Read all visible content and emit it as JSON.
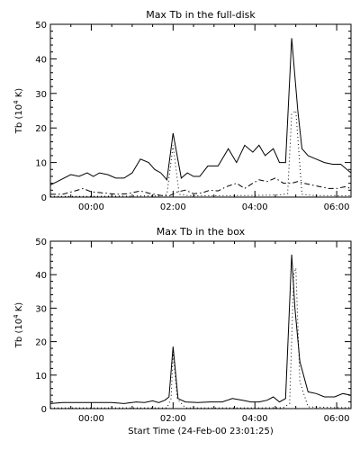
{
  "chart_data": [
    {
      "type": "line",
      "title": "Max Tb in the full-disk",
      "ylabel": "Tb (10",
      "ylabel_sup": "4",
      "ylabel_tail": " K)",
      "xlabel": "",
      "ylim": [
        0,
        50
      ],
      "xlim": [
        -1.0,
        6.35
      ],
      "yticks": [
        0,
        10,
        20,
        30,
        40,
        50
      ],
      "xticks": [
        {
          "v": 0,
          "label": "00:00"
        },
        {
          "v": 2,
          "label": "02:00"
        },
        {
          "v": 4,
          "label": "04:00"
        },
        {
          "v": 6,
          "label": "06:00"
        }
      ],
      "series": [
        {
          "style": "solid",
          "x": [
            -1.0,
            -0.75,
            -0.5,
            -0.3,
            -0.1,
            0.05,
            0.2,
            0.4,
            0.6,
            0.8,
            1.0,
            1.2,
            1.4,
            1.55,
            1.7,
            1.85,
            2.0,
            2.2,
            2.35,
            2.5,
            2.65,
            2.85,
            3.1,
            3.35,
            3.55,
            3.75,
            3.95,
            4.1,
            4.25,
            4.45,
            4.6,
            4.75,
            4.9,
            5.05,
            5.15,
            5.3,
            5.5,
            5.7,
            5.9,
            6.1,
            6.35
          ],
          "y": [
            3.5,
            5,
            6.5,
            6,
            7,
            6,
            7,
            6.5,
            5.5,
            5.5,
            7,
            11,
            10,
            8,
            7,
            5,
            18.5,
            5.5,
            7,
            6,
            6,
            9,
            9,
            14,
            10,
            15,
            13,
            15,
            12,
            14,
            10,
            10,
            46,
            25,
            14,
            12,
            11,
            10,
            9.5,
            9.5,
            7
          ]
        },
        {
          "style": "dashdot",
          "x": [
            -1.0,
            -0.7,
            -0.4,
            -0.2,
            0.0,
            0.3,
            0.6,
            0.9,
            1.2,
            1.45,
            1.7,
            1.9,
            2.1,
            2.3,
            2.5,
            2.7,
            2.9,
            3.1,
            3.3,
            3.55,
            3.75,
            3.95,
            4.1,
            4.3,
            4.5,
            4.7,
            4.9,
            5.05,
            5.2,
            5.4,
            5.6,
            5.8,
            6.0,
            6.2,
            6.35
          ],
          "y": [
            0.8,
            0.8,
            1.8,
            2.5,
            1.5,
            1.2,
            0.8,
            1.0,
            1.8,
            1.0,
            0.5,
            0.3,
            1.5,
            2,
            1.0,
            1.2,
            2.0,
            1.8,
            3.0,
            4.0,
            2.5,
            4.0,
            5.0,
            4.5,
            5.5,
            4.0,
            4.0,
            4.5,
            4.0,
            3.5,
            3.0,
            2.5,
            2.5,
            3.0,
            2.5
          ]
        },
        {
          "style": "dotted",
          "x": [
            -1.0,
            0.0,
            1.0,
            1.7,
            1.85,
            2.0,
            2.15,
            2.4,
            3.0,
            4.0,
            4.6,
            4.8,
            4.9,
            5.0,
            5.15,
            5.4,
            6.0,
            6.35
          ],
          "y": [
            0.2,
            0.2,
            0.3,
            0.3,
            0.8,
            15,
            0.8,
            0.4,
            0.4,
            0.5,
            0.6,
            1.0,
            24,
            25,
            0.8,
            0.5,
            0.4,
            0.4
          ]
        }
      ]
    },
    {
      "type": "line",
      "title": "Max Tb in the box",
      "ylabel": "Tb (10",
      "ylabel_sup": "4",
      "ylabel_tail": " K)",
      "xlabel": "Start Time (24-Feb-00 23:01:25)",
      "ylim": [
        0,
        50
      ],
      "xlim": [
        -1.0,
        6.35
      ],
      "yticks": [
        0,
        10,
        20,
        30,
        40,
        50
      ],
      "xticks": [
        {
          "v": 0,
          "label": "00:00"
        },
        {
          "v": 2,
          "label": "02:00"
        },
        {
          "v": 4,
          "label": "04:00"
        },
        {
          "v": 6,
          "label": "06:00"
        }
      ],
      "series": [
        {
          "style": "solid",
          "x": [
            -1.0,
            -0.7,
            -0.4,
            -0.1,
            0.2,
            0.5,
            0.8,
            1.1,
            1.3,
            1.5,
            1.65,
            1.8,
            1.9,
            2.0,
            2.12,
            2.3,
            2.6,
            2.9,
            3.2,
            3.45,
            3.7,
            3.9,
            4.1,
            4.3,
            4.45,
            4.6,
            4.75,
            4.9,
            4.98,
            5.1,
            5.3,
            5.5,
            5.7,
            5.95,
            6.15,
            6.35
          ],
          "y": [
            1.5,
            1.8,
            1.8,
            1.8,
            1.8,
            1.8,
            1.5,
            2.0,
            1.8,
            2.3,
            1.8,
            2.5,
            3.5,
            18.5,
            3.0,
            2.0,
            1.8,
            2.0,
            2.0,
            3.0,
            2.5,
            2.0,
            2.0,
            2.5,
            3.5,
            2.0,
            3.0,
            46,
            30,
            14,
            5,
            4.5,
            3.5,
            3.5,
            4.5,
            4.0
          ]
        },
        {
          "style": "dotted",
          "x": [
            -1.0,
            0.0,
            1.0,
            1.85,
            1.95,
            2.0,
            2.1,
            2.3,
            3.0,
            4.0,
            4.7,
            4.85,
            4.95,
            5.0,
            5.1,
            5.3,
            6.0,
            6.35
          ],
          "y": [
            0.2,
            0.2,
            0.2,
            0.2,
            3,
            17,
            3,
            0.2,
            0.2,
            0.2,
            0.3,
            1.5,
            40,
            42,
            8,
            0.5,
            0.3,
            0.3
          ]
        }
      ]
    }
  ]
}
